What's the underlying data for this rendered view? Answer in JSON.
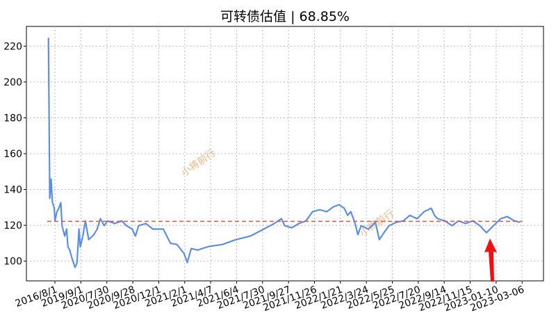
{
  "chart_data": {
    "type": "line",
    "title": "可转债估值 | 68.85%",
    "watermark": "小将前行",
    "xlim": [
      -34,
      763
    ],
    "ylim": [
      89,
      231
    ],
    "yticks": [
      100,
      120,
      140,
      160,
      180,
      200,
      220
    ],
    "xticks": [
      {
        "value": 10,
        "label": "2016/8/1"
      },
      {
        "value": 50,
        "label": "2019/9/1"
      },
      {
        "value": 90,
        "label": "2020/7/30"
      },
      {
        "value": 130,
        "label": "2020/9/28"
      },
      {
        "value": 170,
        "label": "2020/12/1"
      },
      {
        "value": 210,
        "label": "2021/2/1"
      },
      {
        "value": 250,
        "label": "2021/4/7"
      },
      {
        "value": 290,
        "label": "2021/6/4"
      },
      {
        "value": 330,
        "label": "2021/7/30"
      },
      {
        "value": 370,
        "label": "2021/9/27"
      },
      {
        "value": 410,
        "label": "2021/11/26"
      },
      {
        "value": 450,
        "label": "2022/1/21"
      },
      {
        "value": 490,
        "label": "2022/3/24"
      },
      {
        "value": 530,
        "label": "2022/5/25"
      },
      {
        "value": 570,
        "label": "2022/7/20"
      },
      {
        "value": 610,
        "label": "2022/9/14"
      },
      {
        "value": 650,
        "label": "2022/11/15"
      },
      {
        "value": 690,
        "label": "2023-01-10"
      },
      {
        "value": 730,
        "label": "2023-03-06"
      }
    ],
    "grid": true,
    "reference_line": {
      "value": 122.2,
      "color": "#e8553a"
    },
    "series": [
      {
        "color": "#5b8ee6",
        "x": [
          0,
          2,
          4,
          6,
          9,
          10,
          13,
          16,
          19,
          21,
          25,
          28,
          30,
          33,
          36,
          41,
          44,
          47,
          49,
          53,
          57,
          62,
          70,
          75,
          80,
          86,
          91,
          102,
          113,
          120,
          129,
          134,
          139,
          150,
          161,
          177,
          188,
          198,
          209,
          214,
          220,
          230,
          247,
          268,
          289,
          311,
          332,
          348,
          359,
          364,
          375,
          386,
          397,
          407,
          418,
          429,
          439,
          448,
          456,
          461,
          466,
          472,
          477,
          482,
          493,
          504,
          510,
          517,
          525,
          536,
          547,
          557,
          568,
          579,
          590,
          595,
          600,
          611,
          622,
          632,
          643,
          654,
          665,
          675,
          686,
          697,
          707,
          718,
          727
        ],
        "values": [
          224.7,
          135,
          145.8,
          133,
          129.5,
          122.5,
          127.6,
          129.5,
          132.6,
          119.8,
          114,
          117.9,
          108,
          106,
          102,
          96.5,
          99,
          118,
          108,
          114,
          122.5,
          112,
          114.8,
          117.9,
          123.7,
          119.8,
          122.5,
          121,
          122.5,
          119.8,
          117.9,
          114,
          119.8,
          121,
          117.9,
          117.9,
          110,
          109.3,
          104.3,
          99.2,
          107,
          106.2,
          108.2,
          109.3,
          112,
          114,
          117.9,
          121,
          123.7,
          119.8,
          118.6,
          121,
          122.5,
          127.6,
          128.7,
          127.6,
          130.3,
          131.5,
          129.5,
          125.6,
          127.6,
          121.7,
          114.8,
          119.8,
          117.9,
          121.7,
          112,
          115.9,
          119.8,
          121.7,
          122.5,
          125.6,
          123.7,
          127.6,
          129.5,
          125.6,
          123.7,
          122.5,
          119.8,
          122.5,
          121,
          122.5,
          119.8,
          115.9,
          119.8,
          123.7,
          124.9,
          122.5,
          121.7
        ]
      }
    ]
  }
}
